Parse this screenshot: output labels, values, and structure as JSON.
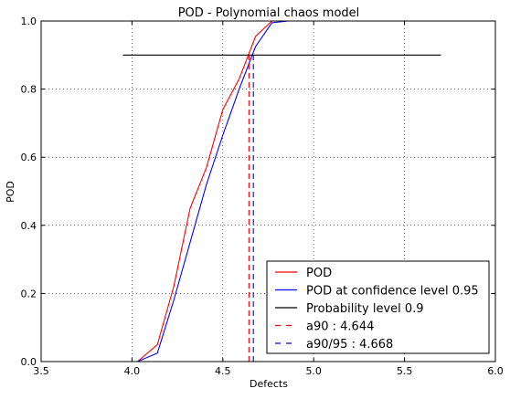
{
  "chart_data": {
    "type": "line",
    "title": "POD - Polynomial chaos model",
    "xlabel": "Defects",
    "ylabel": "POD",
    "xlim": [
      3.5,
      6.0
    ],
    "ylim": [
      0.0,
      1.0
    ],
    "xticks": [
      3.5,
      4.0,
      4.5,
      5.0,
      5.5,
      6.0
    ],
    "xtick_labels": [
      "3.5",
      "4.0",
      "4.5",
      "5.0",
      "5.5",
      "6.0"
    ],
    "yticks": [
      0.0,
      0.2,
      0.4,
      0.6,
      0.8,
      1.0
    ],
    "ytick_labels": [
      "0.0",
      "0.2",
      "0.4",
      "0.6",
      "0.8",
      "1.0"
    ],
    "grid": true,
    "legend_position": "lower-right",
    "series": [
      {
        "name": "POD",
        "color": "#ff0000",
        "style": "solid",
        "x": [
          3.95,
          4.03,
          4.14,
          4.23,
          4.32,
          4.41,
          4.5,
          4.59,
          4.68,
          4.77,
          4.86,
          5.7
        ],
        "y": [
          0.0,
          0.0,
          0.05,
          0.22,
          0.45,
          0.57,
          0.74,
          0.83,
          0.955,
          1.0,
          1.0,
          1.0
        ]
      },
      {
        "name": "POD at confidence level 0.95",
        "color": "#0000ff",
        "style": "solid",
        "x": [
          3.95,
          4.03,
          4.14,
          4.23,
          4.32,
          4.41,
          4.5,
          4.59,
          4.68,
          4.77,
          4.86,
          5.7
        ],
        "y": [
          0.0,
          0.0,
          0.025,
          0.18,
          0.35,
          0.52,
          0.665,
          0.8,
          0.925,
          0.995,
          1.0,
          1.0
        ]
      },
      {
        "name": "Probability level 0.9",
        "color": "#000000",
        "style": "solid",
        "x": [
          3.95,
          5.7
        ],
        "y": [
          0.9,
          0.9
        ]
      },
      {
        "name": "a90 : 4.644",
        "color": "#ff0000",
        "style": "dashed",
        "x": [
          4.644,
          4.644
        ],
        "y": [
          0.0,
          0.9
        ]
      },
      {
        "name": "a90/95 : 4.668",
        "color": "#0000ff",
        "style": "dashed",
        "x": [
          4.668,
          4.668
        ],
        "y": [
          0.0,
          0.9
        ]
      }
    ]
  }
}
